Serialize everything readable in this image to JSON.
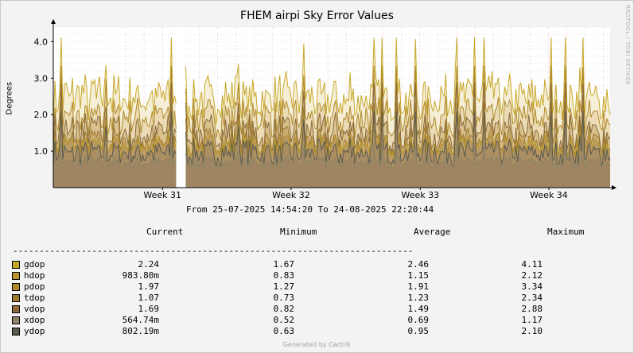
{
  "title": "FHEM airpi Sky Error Values",
  "ylabel": "Degrees",
  "watermark": "RRDTOOL / TOBI OETIKER",
  "range_text": "From 25-07-2025 14:54:20 To 24-08-2025 22:20:44",
  "legend_headers": {
    "current": "Current",
    "minimum": "Minimum",
    "average": "Average",
    "maximum": "Maximum"
  },
  "divider": "----------------------------------------------------------------------------",
  "footer": "Generated by Cacti®",
  "legend": [
    {
      "name": "gdop",
      "color": "#c8a82a",
      "current": "2.24",
      "minimum": "1.67",
      "average": "2.46",
      "maximum": "4.11"
    },
    {
      "name": "hdop",
      "color": "#b8962a",
      "current": "983.80m",
      "minimum": "0.83",
      "average": "1.15",
      "maximum": "2.12"
    },
    {
      "name": "pdop",
      "color": "#b08a2c",
      "current": "1.97",
      "minimum": "1.27",
      "average": "1.91",
      "maximum": "3.34"
    },
    {
      "name": "tdop",
      "color": "#9c7a30",
      "current": "1.07",
      "minimum": "0.73",
      "average": "1.23",
      "maximum": "2.34"
    },
    {
      "name": "vdop",
      "color": "#8a6a3c",
      "current": "1.69",
      "minimum": "0.82",
      "average": "1.49",
      "maximum": "2.88"
    },
    {
      "name": "xdop",
      "color": "#8c8464",
      "current": "564.74m",
      "minimum": "0.52",
      "average": "0.69",
      "maximum": "1.17"
    },
    {
      "name": "ydop",
      "color": "#5a5a50",
      "current": "802.19m",
      "minimum": "0.63",
      "average": "0.95",
      "maximum": "2.10"
    }
  ],
  "chart_data": {
    "type": "area",
    "title": "FHEM airpi Sky Error Values",
    "ylabel": "Degrees",
    "xlabel": "",
    "x_ticks": [
      "Week 31",
      "Week 32",
      "Week 33",
      "Week 34"
    ],
    "y_ticks": [
      "1.0",
      "2.0",
      "3.0",
      "4.0"
    ],
    "ylim": [
      0,
      4.4
    ],
    "x_range": [
      "25-07-2025 14:54:20",
      "24-08-2025 22:20:44"
    ],
    "gap_fraction": [
      0.222,
      0.235
    ],
    "grid": true,
    "series": [
      {
        "name": "gdop",
        "color": "#c8a82a",
        "fill": "#f5ecd0",
        "current": 2.24,
        "min": 1.67,
        "avg": 2.46,
        "max": 4.11
      },
      {
        "name": "pdop",
        "color": "#b08a2c",
        "fill": "#e9d8b0",
        "current": 1.97,
        "min": 1.27,
        "avg": 1.91,
        "max": 3.34
      },
      {
        "name": "vdop",
        "color": "#8a6a3c",
        "fill": "#d7bd88",
        "current": 1.69,
        "min": 0.82,
        "avg": 1.49,
        "max": 2.88
      },
      {
        "name": "tdop",
        "color": "#9c7a30",
        "fill": "#c8a870",
        "current": 1.07,
        "min": 0.73,
        "avg": 1.23,
        "max": 2.34
      },
      {
        "name": "hdop",
        "color": "#b8962a",
        "fill": "#b89860",
        "current": 0.9838,
        "min": 0.83,
        "avg": 1.15,
        "max": 2.12
      },
      {
        "name": "ydop",
        "color": "#5a5a50",
        "fill": "#a88c62",
        "current": 0.80219,
        "min": 0.63,
        "avg": 0.95,
        "max": 2.1
      },
      {
        "name": "xdop",
        "color": "#8c8464",
        "fill": "#9c8462",
        "current": 0.56474,
        "min": 0.52,
        "avg": 0.69,
        "max": 1.17
      }
    ]
  }
}
